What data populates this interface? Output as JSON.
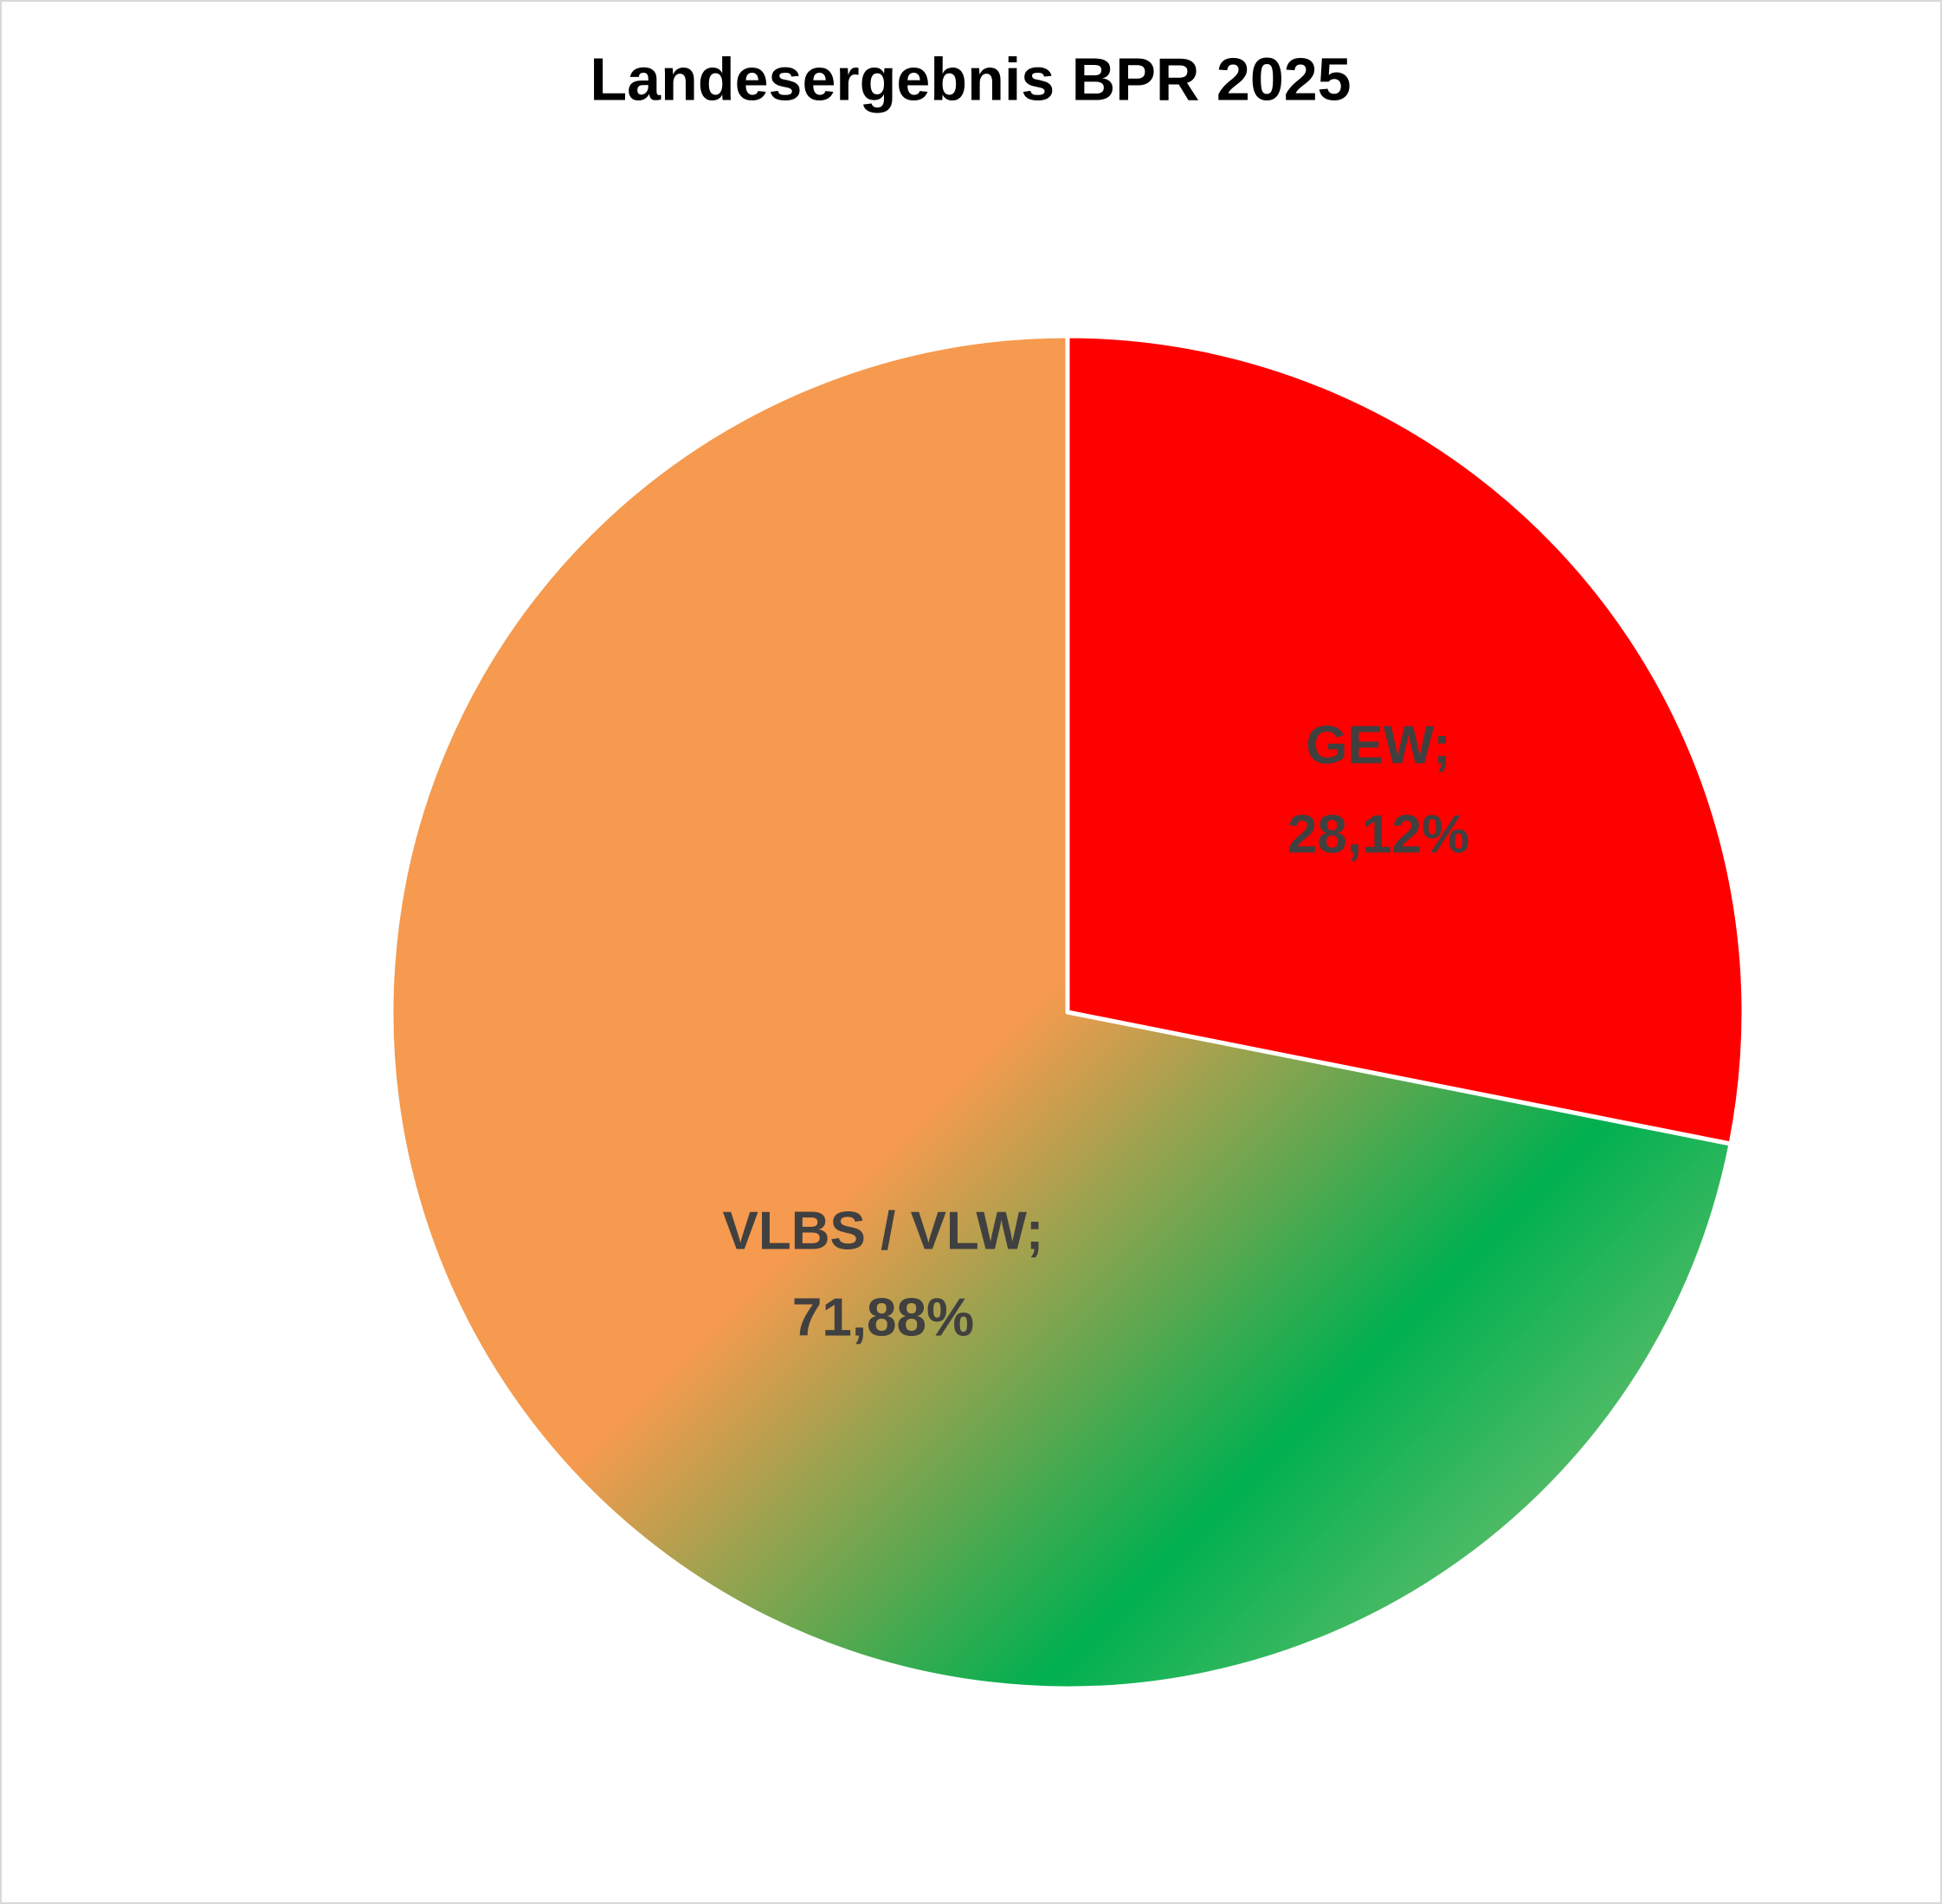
{
  "chart_data": {
    "type": "pie",
    "title": "Landesergebnis BPR 2025",
    "categories": [
      "GEW;",
      "VLBS / VLW;"
    ],
    "values": [
      28.12,
      71.88
    ],
    "value_labels": [
      "28,12%",
      "71,88%"
    ],
    "colors": [
      "#ff0000",
      [
        "#f59a4e",
        "#00b050",
        "#6cbf6e"
      ]
    ]
  }
}
